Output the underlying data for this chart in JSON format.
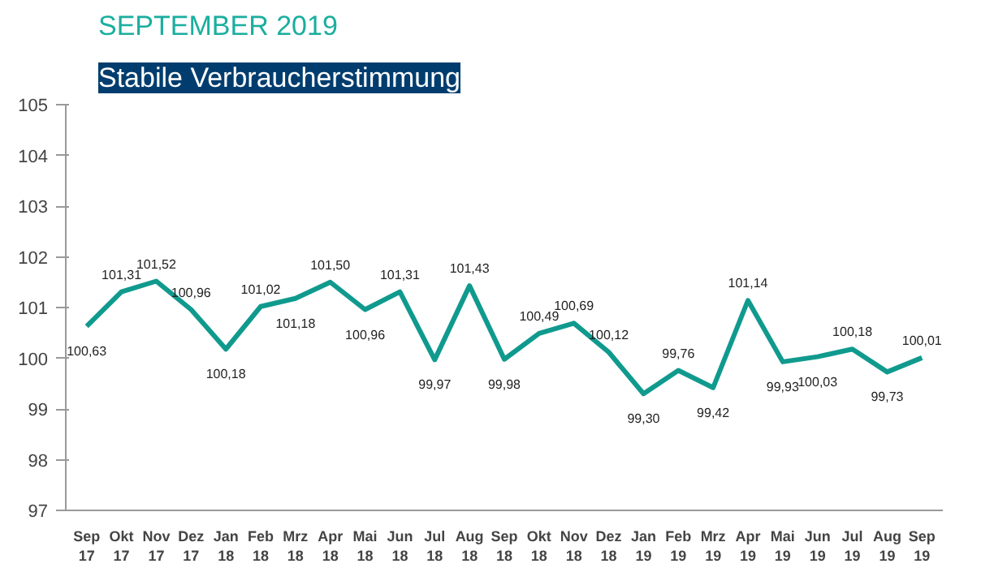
{
  "chart_data": {
    "type": "line",
    "subtitle": "SEPTEMBER 2019",
    "title": "Stabile Verbraucherstimmung",
    "categories": [
      "Sep\n17",
      "Okt\n17",
      "Nov\n17",
      "Dez\n17",
      "Jan\n18",
      "Feb\n18",
      "Mrz\n18",
      "Apr\n18",
      "Mai\n18",
      "Jun\n18",
      "Jul\n18",
      "Aug\n18",
      "Sep\n18",
      "Okt\n18",
      "Nov\n18",
      "Dez\n18",
      "Jan\n19",
      "Feb\n19",
      "Mrz\n19",
      "Apr\n19",
      "Mai\n19",
      "Jun\n19",
      "Jul\n19",
      "Aug\n19",
      "Sep\n19"
    ],
    "series": [
      {
        "color": "#109a8e",
        "values": [
          100.63,
          101.31,
          101.52,
          100.96,
          100.18,
          101.02,
          101.18,
          101.5,
          100.96,
          101.31,
          99.97,
          101.43,
          99.98,
          100.49,
          100.69,
          100.12,
          99.3,
          99.76,
          99.42,
          101.14,
          99.93,
          100.03,
          100.18,
          99.73,
          100.01
        ],
        "value_labels": [
          "100,63",
          "101,31",
          "101,52",
          "100,96",
          "100,18",
          "101,02",
          "101,18",
          "101,50",
          "100,96",
          "101,31",
          "99,97",
          "101,43",
          "99,98",
          "100,49",
          "100,69",
          "100,12",
          "99,30",
          "99,76",
          "99,42",
          "101,14",
          "99,93",
          "100,03",
          "100,18",
          "99,73",
          "100,01"
        ]
      }
    ],
    "ylim": [
      97,
      105
    ],
    "yticks": [
      97,
      98,
      99,
      100,
      101,
      102,
      103,
      104,
      105
    ],
    "grid": false,
    "marker": "none",
    "line_style": "solid"
  }
}
